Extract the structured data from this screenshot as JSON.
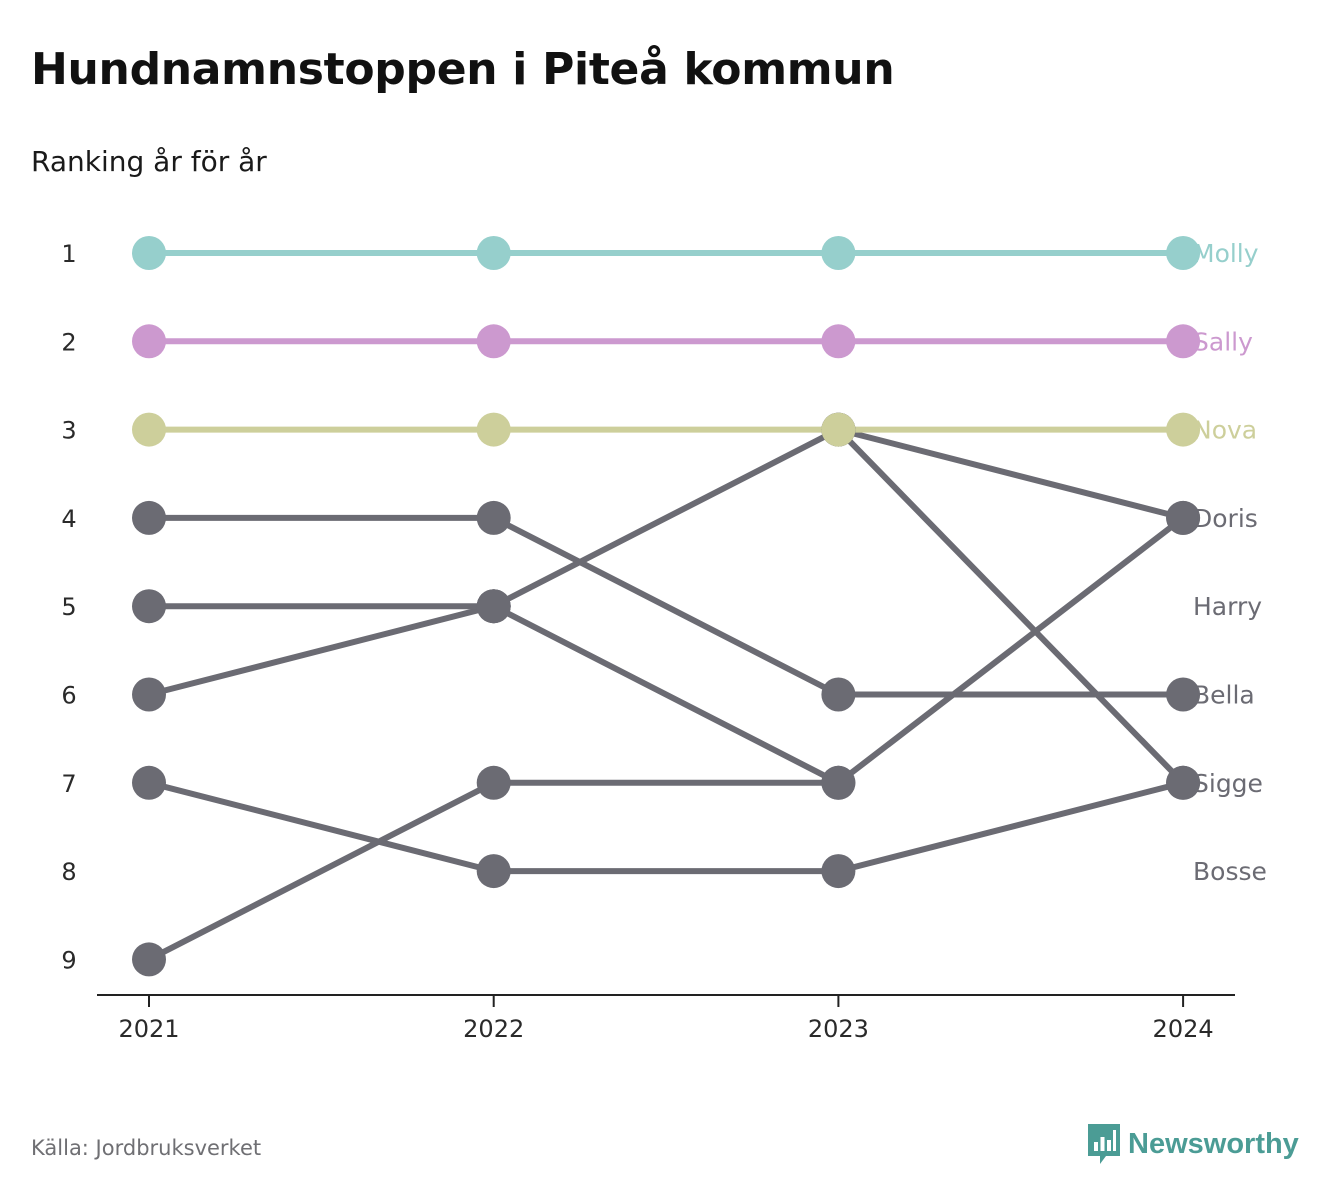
{
  "title": "Hundnamnstoppen i Piteå kommun",
  "subtitle": "Ranking år för år",
  "source": "Källa: Jordbruksverket",
  "brand": {
    "name": "Newsworthy",
    "icon": "newsworthy-logo-icon",
    "color": "#4b9c95"
  },
  "chart_data": {
    "type": "line",
    "subtype": "bump",
    "x": [
      "2021",
      "2022",
      "2023",
      "2024"
    ],
    "y_ticks": [
      1,
      2,
      3,
      4,
      5,
      6,
      7,
      8,
      9
    ],
    "ylim": [
      1,
      9
    ],
    "y_reversed": true,
    "grid": false,
    "legend": "direct-labels-right",
    "series": [
      {
        "name": "Molly",
        "values": [
          1,
          1,
          1,
          1
        ],
        "color": "#96cfcc"
      },
      {
        "name": "Sally",
        "values": [
          2,
          2,
          2,
          2
        ],
        "color": "#cc99cf"
      },
      {
        "name": "Nova",
        "values": [
          3,
          3,
          3,
          3
        ],
        "color": "#cdcf9b"
      },
      {
        "name": "Doris",
        "values": [
          6,
          5,
          7,
          4
        ],
        "color": "#6b6b73"
      },
      {
        "name": "Harry",
        "values": [
          5,
          5,
          null,
          null
        ],
        "color": "#6b6b73"
      },
      {
        "name": "Bella",
        "values": [
          4,
          4,
          6,
          6
        ],
        "color": "#6b6b73"
      },
      {
        "name": "Sigge",
        "values": [
          null,
          5,
          3,
          7
        ],
        "color": "#6b6b73"
      },
      {
        "name": "Bosse",
        "values": [
          7,
          8,
          8,
          7
        ],
        "color": "#6b6b73"
      },
      {
        "name": "",
        "values": [
          9,
          7,
          7,
          null
        ],
        "color": "#6b6b73"
      },
      {
        "name": "",
        "values": [
          null,
          null,
          3,
          4
        ],
        "color": "#6b6b73"
      }
    ],
    "end_labels": [
      {
        "name": "Molly",
        "rank": 1,
        "color": "#96cfcc"
      },
      {
        "name": "Sally",
        "rank": 2,
        "color": "#cc99cf"
      },
      {
        "name": "Nova",
        "rank": 3,
        "color": "#cdcf9b"
      },
      {
        "name": "Doris",
        "rank": 4,
        "color": "#6b6b73"
      },
      {
        "name": "Harry",
        "rank": 5,
        "color": "#6b6b73"
      },
      {
        "name": "Bella",
        "rank": 6,
        "color": "#6b6b73"
      },
      {
        "name": "Sigge",
        "rank": 7,
        "color": "#6b6b73"
      },
      {
        "name": "Bosse",
        "rank": 8,
        "color": "#6b6b73"
      }
    ]
  }
}
